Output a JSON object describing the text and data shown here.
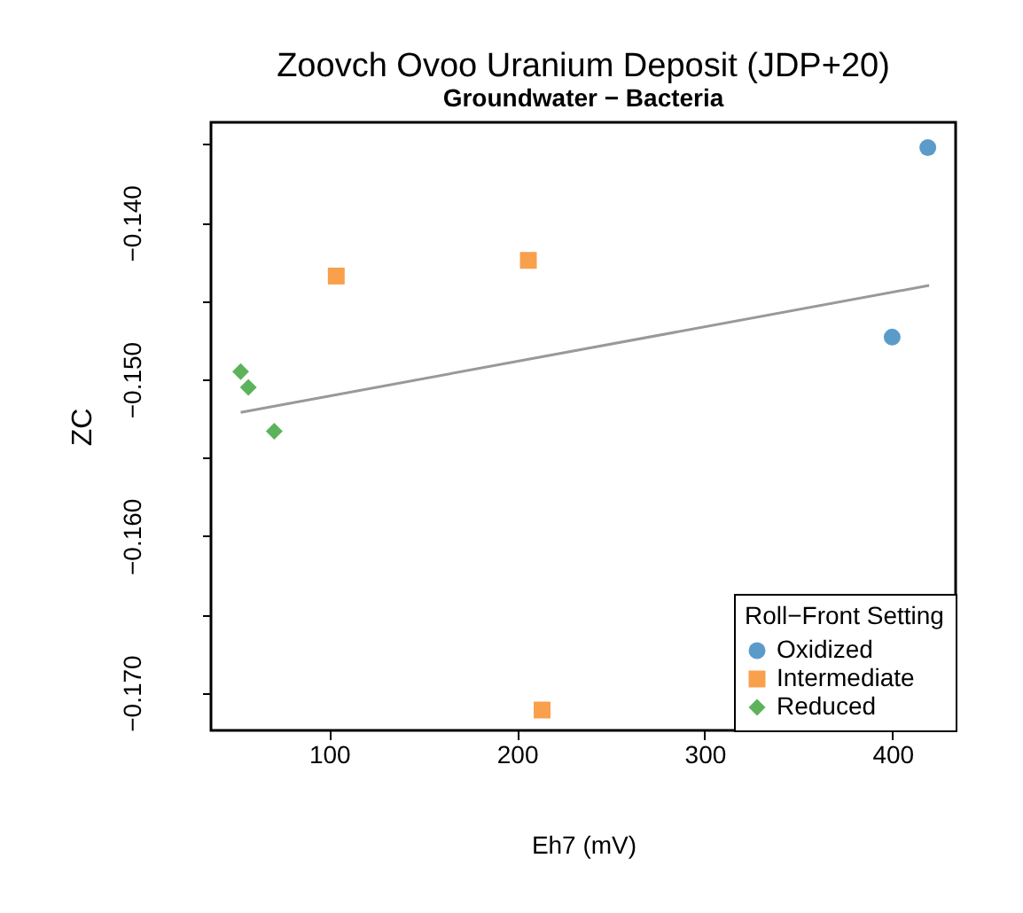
{
  "chart_data": {
    "type": "scatter",
    "title": "Zoovch Ovoo Uranium Deposit (JDP+20)",
    "subtitle": "Groundwater − Bacteria",
    "xlabel": "Eh7 (mV)",
    "ylabel": "ZC",
    "legend_title": "Roll−Front Setting",
    "xlim": [
      37.1,
      433.6
    ],
    "xticks": [
      100,
      200,
      300,
      400
    ],
    "ylim": [
      -0.1724,
      -0.13359
    ],
    "yticks": [
      {
        "value": -0.135,
        "label": null
      },
      {
        "value": -0.14,
        "label": "−0.140"
      },
      {
        "value": -0.145,
        "label": null
      },
      {
        "value": -0.15,
        "label": "−0.150"
      },
      {
        "value": -0.155,
        "label": null
      },
      {
        "value": -0.16,
        "label": "−0.160"
      },
      {
        "value": -0.165,
        "label": null
      },
      {
        "value": -0.17,
        "label": "−0.170"
      }
    ],
    "grid": false,
    "legend": "bottom right",
    "series": [
      {
        "name": "Oxidized",
        "color": "#5b9bc9",
        "marker": "circle",
        "x": [
          418.8,
          399.8
        ],
        "values": [
          -0.1352,
          -0.1473
        ]
      },
      {
        "name": "Intermediate",
        "color": "#f9a04c",
        "marker": "square",
        "x": [
          103.8,
          206.1,
          213.4
        ],
        "values": [
          -0.1434,
          -0.1424,
          -0.1711
        ]
      },
      {
        "name": "Reduced",
        "color": "#5db35b",
        "marker": "diamond",
        "x": [
          52.9,
          57.0,
          70.8
        ],
        "values": [
          -0.1495,
          -0.1505,
          -0.1533
        ]
      },
      {
        "type": "line",
        "color": "#999999",
        "line_style": "solid",
        "x": [
          52.9,
          419.5
        ],
        "values": [
          -0.1521,
          -0.144
        ]
      }
    ]
  }
}
